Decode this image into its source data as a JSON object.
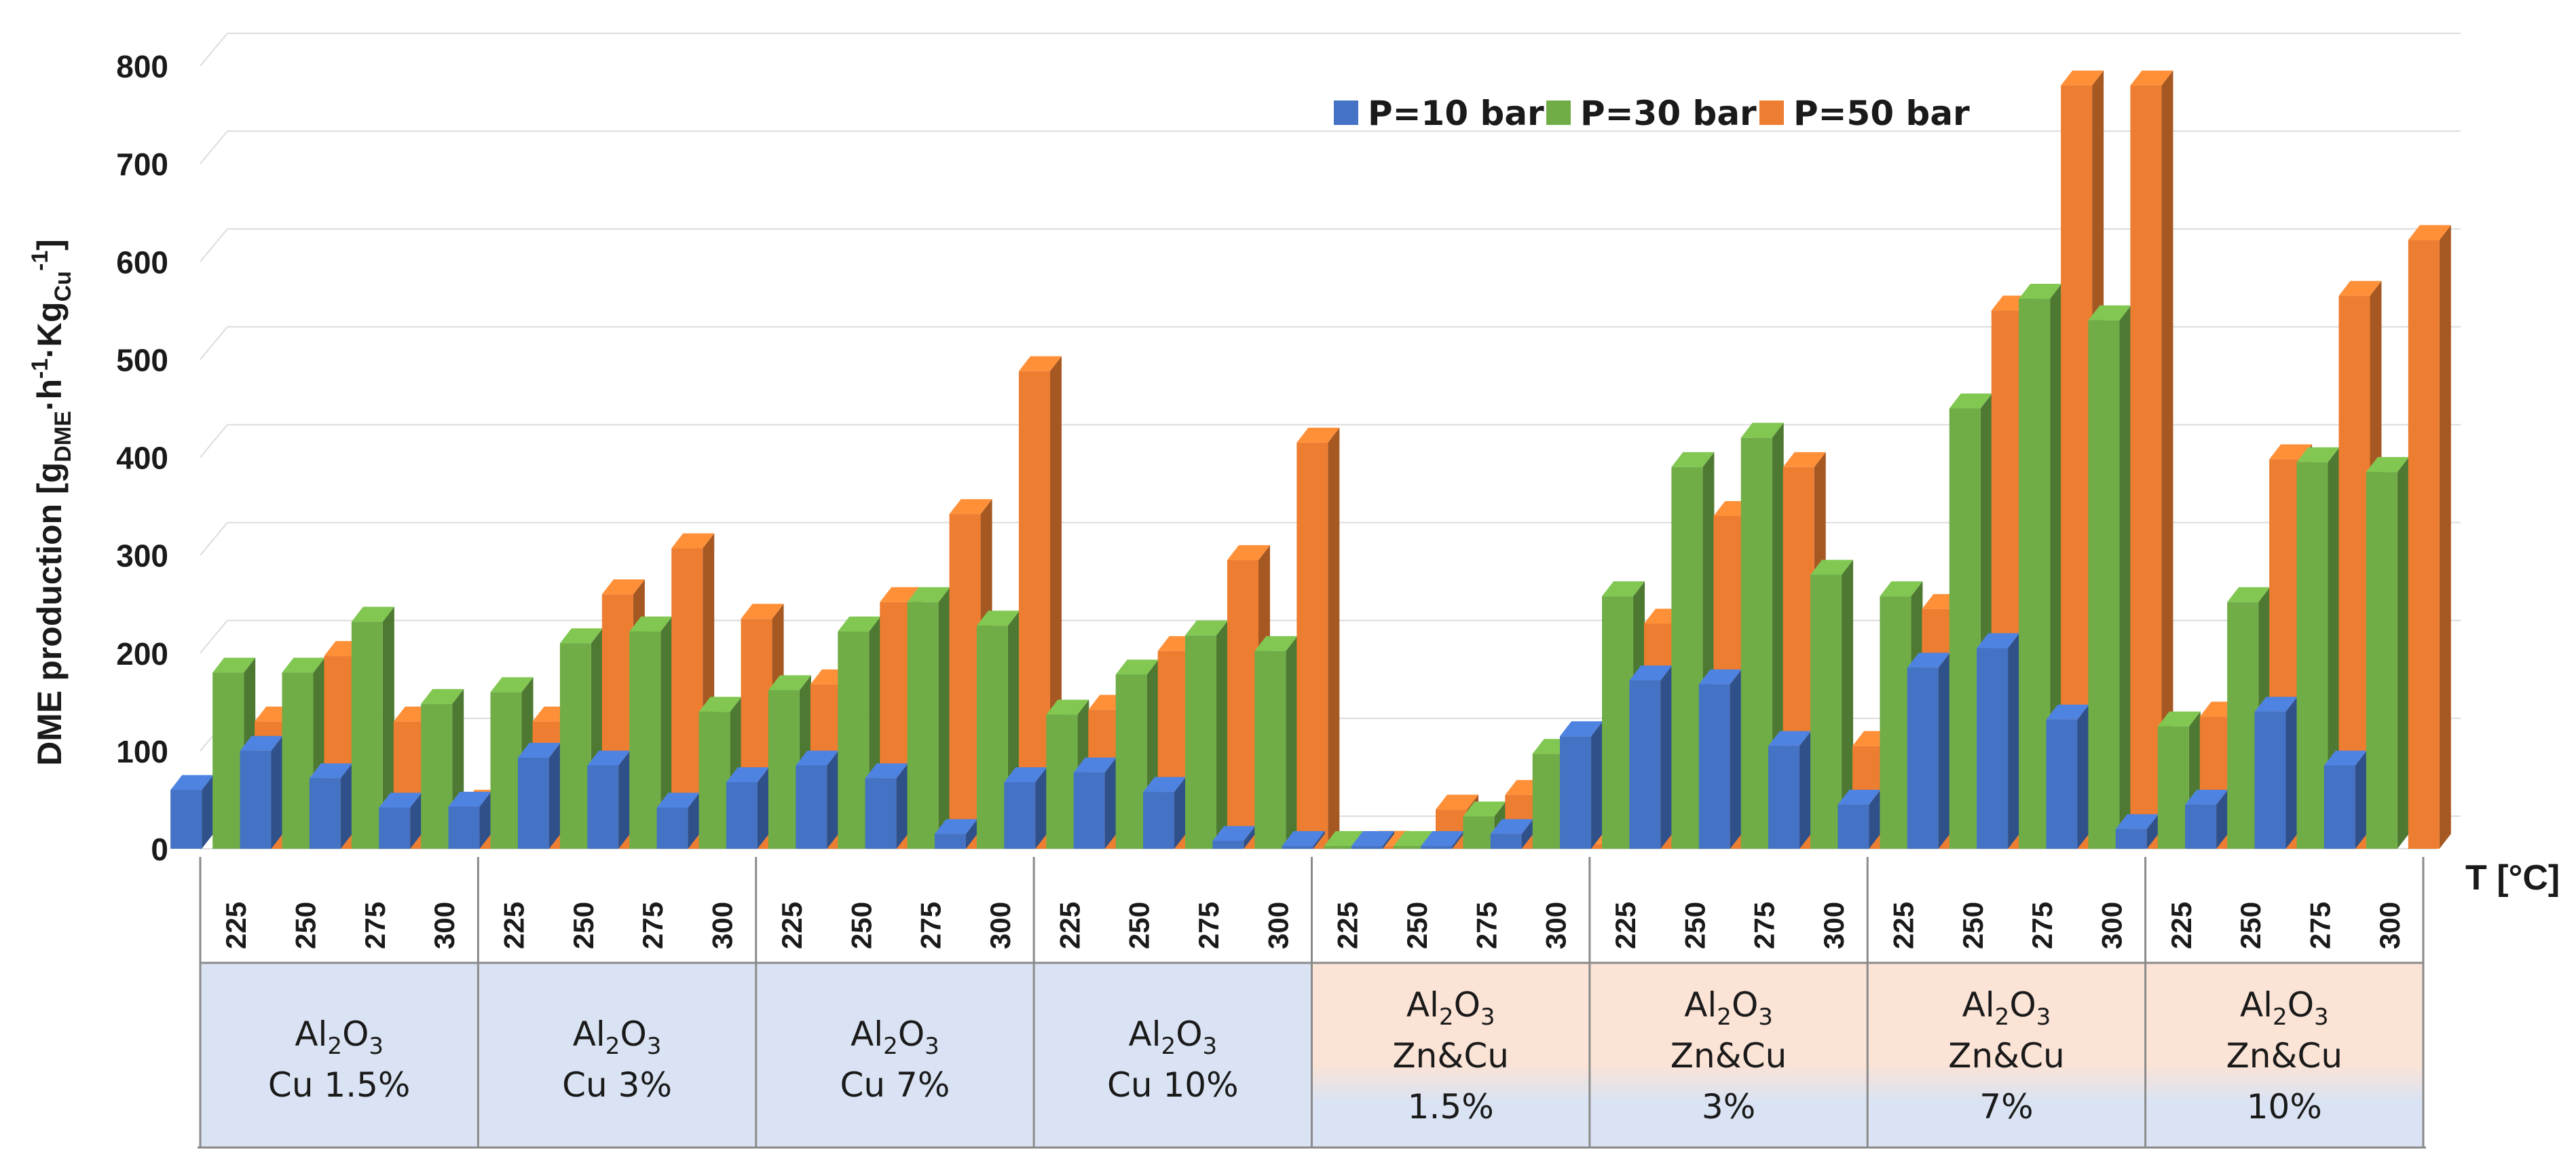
{
  "chart_data": {
    "type": "bar",
    "ylabel_parts": [
      "DME production [g",
      "DME",
      "·h",
      "-1",
      "·Kg",
      "Cu",
      "-1",
      "]"
    ],
    "xlabel": "T [°C]",
    "ylim": [
      0,
      800
    ],
    "yticks": [
      0,
      100,
      200,
      300,
      400,
      500,
      600,
      700,
      800
    ],
    "temperatures": [
      "225",
      "250",
      "275",
      "300"
    ],
    "groups": [
      {
        "line1": "Al",
        "sub": "2",
        "line1b": "O",
        "sub2": "3",
        "line2": "Cu 1.5%",
        "line3": "",
        "shade": "blue"
      },
      {
        "line1": "Al",
        "sub": "2",
        "line1b": "O",
        "sub2": "3",
        "line2": "Cu 3%",
        "line3": "",
        "shade": "blue"
      },
      {
        "line1": "Al",
        "sub": "2",
        "line1b": "O",
        "sub2": "3",
        "line2": "Cu 7%",
        "line3": "",
        "shade": "blue"
      },
      {
        "line1": "Al",
        "sub": "2",
        "line1b": "O",
        "sub2": "3",
        "line2": "Cu 10%",
        "line3": "",
        "shade": "blue"
      },
      {
        "line1": "Al",
        "sub": "2",
        "line1b": "O",
        "sub2": "3",
        "line2": "Zn&Cu",
        "line3": "1.5%",
        "shade": "peach"
      },
      {
        "line1": "Al",
        "sub": "2",
        "line1b": "O",
        "sub2": "3",
        "line2": "Zn&Cu",
        "line3": "3%",
        "shade": "peach"
      },
      {
        "line1": "Al",
        "sub": "2",
        "line1b": "O",
        "sub2": "3",
        "line2": "Zn&Cu",
        "line3": "7%",
        "shade": "peach"
      },
      {
        "line1": "Al",
        "sub": "2",
        "line1b": "O",
        "sub2": "3",
        "line2": "Zn&Cu",
        "line3": "10%",
        "shade": "peach"
      }
    ],
    "series": [
      {
        "name": "P=10 bar",
        "color": "#4472C4",
        "values": [
          60,
          100,
          72,
          42,
          43,
          93,
          85,
          42,
          68,
          85,
          72,
          15,
          68,
          78,
          58,
          8,
          0,
          0,
          0,
          15,
          115,
          172,
          168,
          105,
          45,
          185,
          205,
          132,
          20,
          45,
          140,
          85
        ]
      },
      {
        "name": "P=30 bar",
        "color": "#70AD47",
        "values": [
          180,
          180,
          232,
          148,
          160,
          210,
          222,
          140,
          162,
          222,
          252,
          228,
          137,
          178,
          218,
          202,
          0,
          0,
          33,
          97,
          258,
          390,
          420,
          280,
          258,
          450,
          562,
          540,
          125,
          252,
          395,
          385
        ]
      },
      {
        "name": "P=50 bar",
        "color": "#ED7D31",
        "values": [
          130,
          197,
          130,
          45,
          130,
          260,
          307,
          235,
          168,
          252,
          342,
          488,
          142,
          202,
          295,
          415,
          3,
          40,
          55,
          5,
          230,
          340,
          390,
          105,
          245,
          550,
          780,
          780,
          135,
          398,
          565,
          622
        ]
      }
    ],
    "legend": "top-center",
    "grid": true
  },
  "colors": {
    "gridline": "#dcdcdc",
    "axis": "#8a8a8a",
    "blue_cell": "#DAE3F3",
    "peach_cell": "#FBE3D6"
  }
}
